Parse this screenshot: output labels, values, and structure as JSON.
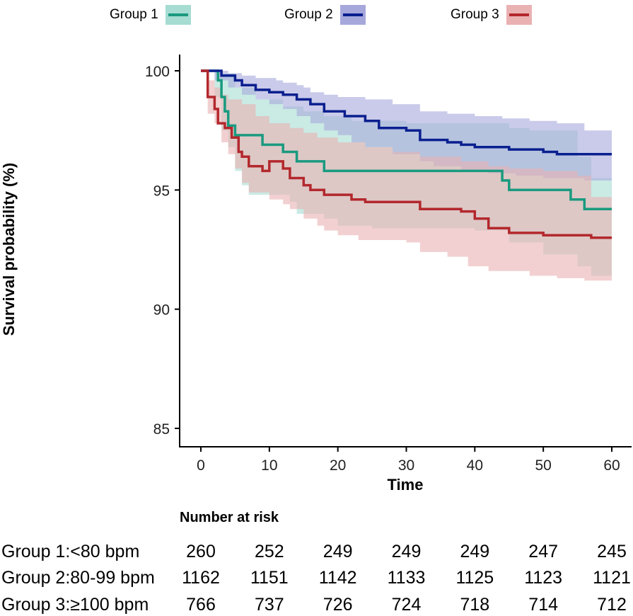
{
  "legend": [
    {
      "label": "Group 1",
      "color": "#1a9a7f",
      "band_color": "#a6dcd2"
    },
    {
      "label": "Group 2",
      "color": "#0a1f8f",
      "band_color": "#a6a8dc"
    },
    {
      "label": "Group 3",
      "color": "#b3282d",
      "band_color": "#eab1b3"
    }
  ],
  "chart_data": {
    "type": "line",
    "subtype": "kaplan-meier step curves with confidence bands",
    "xlabel": "Time",
    "ylabel": "Survival probability (%)",
    "xlim": [
      0,
      60
    ],
    "ylim": [
      84,
      100.5
    ],
    "xticks": [
      0,
      10,
      20,
      30,
      40,
      50,
      60
    ],
    "yticks": [
      85,
      90,
      95,
      100
    ],
    "series": [
      {
        "name": "Group 1",
        "color": "#1a9a7f",
        "band_color": "#a6dcd2",
        "steps": [
          [
            0,
            100
          ],
          [
            2.5,
            99.6
          ],
          [
            3,
            98.9
          ],
          [
            3.5,
            98.3
          ],
          [
            4,
            97.7
          ],
          [
            5,
            97.3
          ],
          [
            9,
            96.9
          ],
          [
            12,
            96.6
          ],
          [
            14,
            96.2
          ],
          [
            18,
            95.8
          ],
          [
            44,
            95.4
          ],
          [
            45,
            95.0
          ],
          [
            54,
            94.6
          ],
          [
            56,
            94.2
          ],
          [
            60,
            94.2
          ]
        ],
        "upper": [
          [
            0,
            100
          ],
          [
            3,
            99.9
          ],
          [
            5,
            99.3
          ],
          [
            8,
            98.8
          ],
          [
            12,
            98.5
          ],
          [
            15,
            98.3
          ],
          [
            18,
            98.1
          ],
          [
            22,
            97.9
          ],
          [
            30,
            97.8
          ],
          [
            38,
            97.8
          ],
          [
            45,
            97.6
          ],
          [
            48,
            97.5
          ],
          [
            55,
            96.4
          ],
          [
            57,
            95.5
          ],
          [
            60,
            95.5
          ]
        ],
        "lower": [
          [
            0,
            100
          ],
          [
            2,
            98.9
          ],
          [
            3,
            97.5
          ],
          [
            4,
            96.8
          ],
          [
            5,
            95.8
          ],
          [
            6,
            95.2
          ],
          [
            7,
            94.8
          ],
          [
            13,
            94.5
          ],
          [
            14,
            94.0
          ],
          [
            18,
            93.8
          ],
          [
            20,
            93.5
          ],
          [
            25,
            93.4
          ],
          [
            40,
            93.3
          ],
          [
            45,
            92.8
          ],
          [
            50,
            92.3
          ],
          [
            55,
            91.8
          ],
          [
            57,
            91.4
          ],
          [
            60,
            91.4
          ]
        ]
      },
      {
        "name": "Group 2",
        "color": "#0a1f8f",
        "band_color": "#a6a8dc",
        "steps": [
          [
            0,
            100
          ],
          [
            3,
            99.8
          ],
          [
            5,
            99.6
          ],
          [
            6,
            99.4
          ],
          [
            8,
            99.2
          ],
          [
            10,
            99.1
          ],
          [
            12,
            99.0
          ],
          [
            14,
            98.8
          ],
          [
            16,
            98.6
          ],
          [
            18,
            98.3
          ],
          [
            21,
            98.1
          ],
          [
            24,
            97.9
          ],
          [
            26,
            97.6
          ],
          [
            30,
            97.5
          ],
          [
            32,
            97.1
          ],
          [
            36,
            97.0
          ],
          [
            38,
            96.9
          ],
          [
            40,
            96.8
          ],
          [
            45,
            96.7
          ],
          [
            50,
            96.6
          ],
          [
            52,
            96.5
          ],
          [
            60,
            96.5
          ]
        ],
        "upper": [
          [
            0,
            100
          ],
          [
            4,
            99.9
          ],
          [
            6,
            99.8
          ],
          [
            8,
            99.7
          ],
          [
            11,
            99.6
          ],
          [
            12,
            99.5
          ],
          [
            14,
            99.4
          ],
          [
            15,
            99.3
          ],
          [
            16,
            99.1
          ],
          [
            18,
            99.0
          ],
          [
            20,
            98.9
          ],
          [
            24,
            98.8
          ],
          [
            28,
            98.6
          ],
          [
            32,
            98.3
          ],
          [
            36,
            98.2
          ],
          [
            40,
            98.1
          ],
          [
            44,
            98.0
          ],
          [
            48,
            97.9
          ],
          [
            52,
            97.8
          ],
          [
            56,
            97.5
          ],
          [
            60,
            97.5
          ]
        ],
        "lower": [
          [
            0,
            100
          ],
          [
            2,
            99.6
          ],
          [
            4,
            99.3
          ],
          [
            6,
            99.0
          ],
          [
            8,
            98.8
          ],
          [
            10,
            98.6
          ],
          [
            12,
            98.4
          ],
          [
            14,
            98.1
          ],
          [
            16,
            97.8
          ],
          [
            18,
            97.5
          ],
          [
            20,
            97.3
          ],
          [
            22,
            97.0
          ],
          [
            24,
            96.8
          ],
          [
            28,
            96.5
          ],
          [
            32,
            96.2
          ],
          [
            34,
            96.0
          ],
          [
            38,
            95.8
          ],
          [
            42,
            95.7
          ],
          [
            46,
            95.6
          ],
          [
            50,
            95.5
          ],
          [
            56,
            95.4
          ],
          [
            60,
            95.4
          ]
        ]
      },
      {
        "name": "Group 3",
        "color": "#b3282d",
        "band_color": "#eab1b3",
        "steps": [
          [
            0,
            100
          ],
          [
            1,
            98.9
          ],
          [
            2,
            98.4
          ],
          [
            2.5,
            97.8
          ],
          [
            3.5,
            97.6
          ],
          [
            4.5,
            97.2
          ],
          [
            5.5,
            96.6
          ],
          [
            6,
            96.4
          ],
          [
            7,
            96.0
          ],
          [
            9,
            95.8
          ],
          [
            10,
            96.2
          ],
          [
            12,
            95.9
          ],
          [
            13,
            95.5
          ],
          [
            15,
            95.2
          ],
          [
            16,
            95.0
          ],
          [
            18,
            94.8
          ],
          [
            22,
            94.6
          ],
          [
            24,
            94.5
          ],
          [
            32,
            94.2
          ],
          [
            38,
            94.1
          ],
          [
            40,
            93.8
          ],
          [
            42,
            93.4
          ],
          [
            45,
            93.2
          ],
          [
            50,
            93.1
          ],
          [
            57,
            93.0
          ],
          [
            60,
            93.0
          ]
        ],
        "upper": [
          [
            0,
            100
          ],
          [
            1,
            99.6
          ],
          [
            2,
            99.3
          ],
          [
            3,
            99.0
          ],
          [
            4,
            98.8
          ],
          [
            6,
            98.6
          ],
          [
            8,
            98.1
          ],
          [
            10,
            97.8
          ],
          [
            13,
            97.6
          ],
          [
            15,
            97.4
          ],
          [
            17,
            97.2
          ],
          [
            20,
            97.0
          ],
          [
            24,
            96.8
          ],
          [
            28,
            96.6
          ],
          [
            32,
            96.4
          ],
          [
            38,
            96.2
          ],
          [
            42,
            96.0
          ],
          [
            45,
            95.9
          ],
          [
            50,
            95.8
          ],
          [
            55,
            95.6
          ],
          [
            57,
            94.7
          ],
          [
            60,
            94.7
          ]
        ],
        "lower": [
          [
            0,
            100
          ],
          [
            1,
            98.2
          ],
          [
            2,
            97.8
          ],
          [
            3,
            97.0
          ],
          [
            4,
            96.5
          ],
          [
            5,
            95.9
          ],
          [
            6,
            95.3
          ],
          [
            7,
            94.9
          ],
          [
            10,
            94.6
          ],
          [
            12,
            94.4
          ],
          [
            13,
            94.2
          ],
          [
            15,
            93.8
          ],
          [
            17,
            93.5
          ],
          [
            18,
            93.3
          ],
          [
            20,
            93.1
          ],
          [
            23,
            92.9
          ],
          [
            30,
            92.8
          ],
          [
            32,
            92.4
          ],
          [
            36,
            92.2
          ],
          [
            39,
            91.8
          ],
          [
            42,
            91.6
          ],
          [
            48,
            91.4
          ],
          [
            52,
            91.3
          ],
          [
            56,
            91.2
          ],
          [
            60,
            91.2
          ]
        ]
      }
    ],
    "risk_table": {
      "title": "Number at risk",
      "times": [
        0,
        10,
        20,
        30,
        40,
        50,
        60
      ],
      "rows": [
        {
          "label": "Group 1:<80 bpm",
          "values": [
            "260",
            "252",
            "249",
            "249",
            "249",
            "247",
            "245"
          ]
        },
        {
          "label": "Group 2:80-99 bpm",
          "values": [
            "1162",
            "1151",
            "1142",
            "1133",
            "1125",
            "1123",
            "1121"
          ]
        },
        {
          "label": "Group 3:≥100 bpm",
          "values": [
            "766",
            "737",
            "726",
            "724",
            "718",
            "714",
            "712"
          ]
        }
      ]
    }
  }
}
